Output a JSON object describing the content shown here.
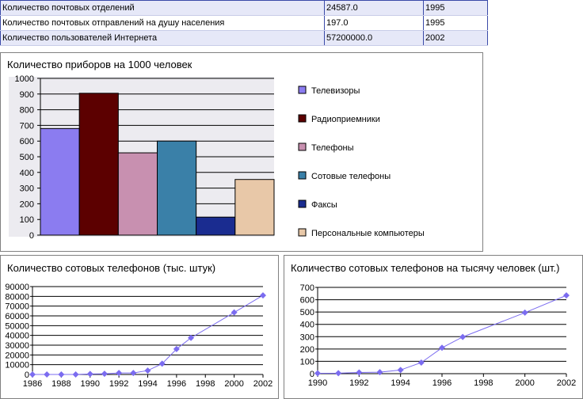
{
  "table": {
    "rows": [
      [
        "Количество почтовых отделений",
        "24587.0",
        "1995"
      ],
      [
        "Количество почтовых отправлений на душу населения",
        "197.0",
        "1995"
      ],
      [
        "Количество пользователей Интернета",
        "57200000.0",
        "2002"
      ]
    ]
  },
  "chart_data": [
    {
      "type": "bar",
      "title": "Количество приборов на 1000 человек",
      "categories": [
        "Телевизоры",
        "Радиоприемники",
        "Телефоны",
        "Сотовые телефоны",
        "Факсы",
        "Персональные компьютеры"
      ],
      "values": [
        680,
        905,
        525,
        600,
        115,
        355
      ],
      "colors": [
        "#8b7cf0",
        "#5c0000",
        "#c890b0",
        "#3a80a8",
        "#1a2c90",
        "#e8c8a8"
      ],
      "ylim": [
        0,
        1000
      ],
      "yticks": [
        0,
        100,
        200,
        300,
        400,
        500,
        600,
        700,
        800,
        900,
        1000
      ],
      "legend": "right"
    },
    {
      "type": "line",
      "title": "Количество сотовых телефонов (тыс. штук)",
      "x": [
        1986,
        1987,
        1988,
        1989,
        1990,
        1991,
        1992,
        1993,
        1994,
        1995,
        1996,
        1997,
        2000,
        2002
      ],
      "y": [
        0,
        0,
        0,
        0,
        500,
        700,
        1500,
        1500,
        4000,
        11000,
        26000,
        37500,
        63500,
        81000
      ],
      "xlim": [
        1986,
        2002
      ],
      "ylim": [
        0,
        90000
      ],
      "xticks": [
        1986,
        1988,
        1990,
        1992,
        1994,
        1996,
        1998,
        2000,
        2002
      ],
      "yticks": [
        0,
        10000,
        20000,
        30000,
        40000,
        50000,
        60000,
        70000,
        80000,
        90000
      ],
      "color": "#7b6cf0"
    },
    {
      "type": "line",
      "title": "Количество сотовых телефонов на тысячу человек (шт.)",
      "x": [
        1990,
        1991,
        1992,
        1993,
        1994,
        1995,
        1996,
        1997,
        2000,
        2002
      ],
      "y": [
        3,
        4,
        10,
        12,
        30,
        90,
        210,
        298,
        495,
        635
      ],
      "xlim": [
        1990,
        2002
      ],
      "ylim": [
        0,
        700
      ],
      "xticks": [
        1990,
        1992,
        1994,
        1996,
        1998,
        2000,
        2002
      ],
      "yticks": [
        0,
        100,
        200,
        300,
        400,
        500,
        600,
        700
      ],
      "color": "#7b6cf0"
    }
  ]
}
